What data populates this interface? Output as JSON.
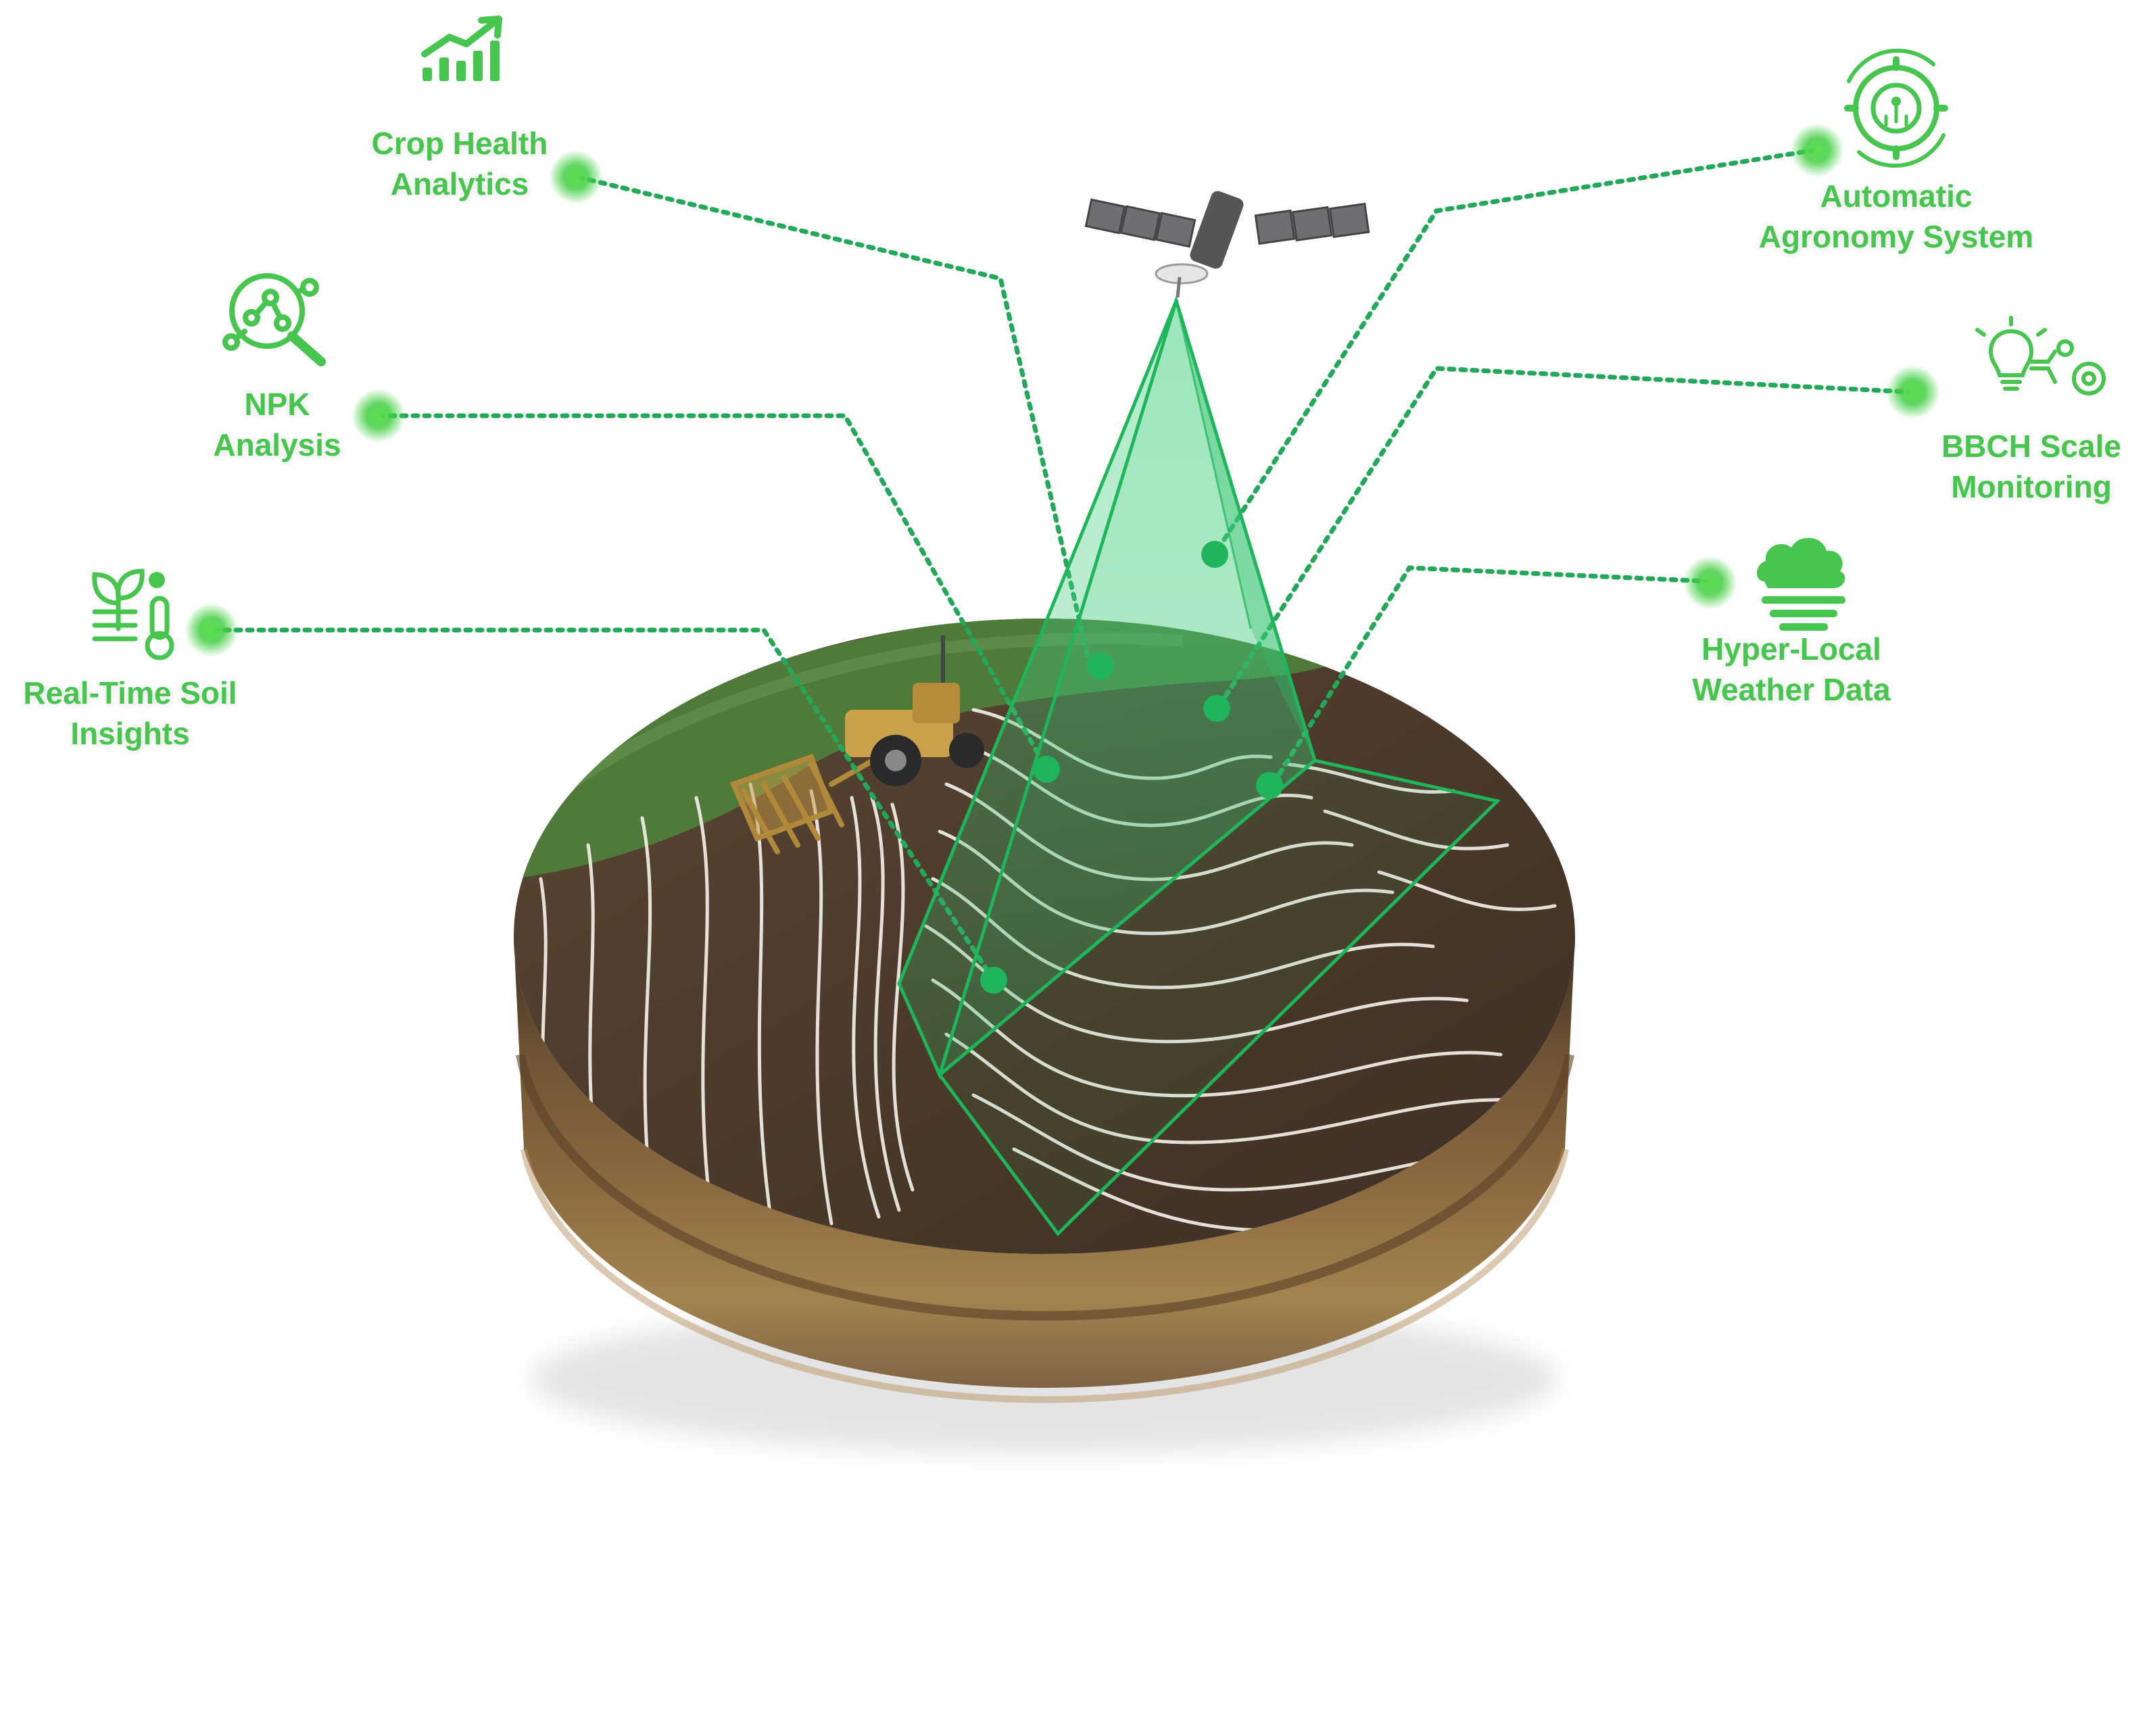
{
  "features": [
    {
      "id": "crop-health",
      "lines": [
        "Crop Health",
        "Analytics"
      ],
      "icon": "bar-chart-trend-icon"
    },
    {
      "id": "npk",
      "lines": [
        "NPK",
        "Analysis"
      ],
      "icon": "magnifier-molecule-icon"
    },
    {
      "id": "soil",
      "lines": [
        "Real-Time Soil",
        "Insights"
      ],
      "icon": "plant-thermometer-icon"
    },
    {
      "id": "agronomy",
      "lines": [
        "Automatic",
        "Agronomy System"
      ],
      "icon": "gear-circuit-icon"
    },
    {
      "id": "bbch",
      "lines": [
        "BBCH Scale",
        "Monitoring"
      ],
      "icon": "bulb-gears-icon"
    },
    {
      "id": "weather",
      "lines": [
        "Hyper-Local",
        "Weather Data"
      ],
      "icon": "cloud-fog-icon"
    }
  ],
  "colors": {
    "accent": "#47c54e",
    "line": "#23a85a",
    "beam": "#3ccf7a",
    "soil_top": "#4a3a2b",
    "soil_side": "#7a5a37",
    "grass": "#4f7a3a"
  },
  "illustration": {
    "satellite": "satellite-icon",
    "tractor": "tractor-icon",
    "harrow": "harrow-implement-icon",
    "field": "soil-disc-contour-map"
  }
}
